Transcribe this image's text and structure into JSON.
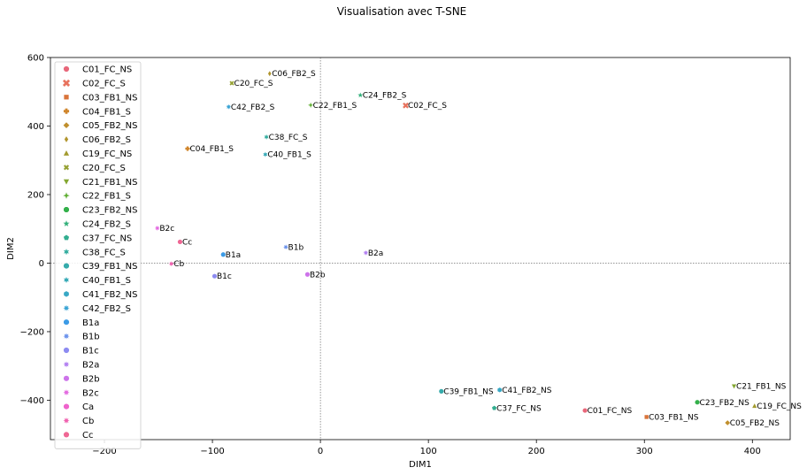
{
  "chart_data": {
    "type": "scatter",
    "title": "Visualisation avec T-SNE",
    "xlabel": "DIM1",
    "ylabel": "DIM2",
    "xlim": [
      -250,
      435
    ],
    "ylim": [
      -515,
      600
    ],
    "xticks": [
      -200,
      -100,
      0,
      100,
      200,
      300,
      400
    ],
    "yticks": [
      -400,
      -200,
      0,
      200,
      400,
      600
    ],
    "reference_lines": {
      "x": 0,
      "y": 0,
      "style": "dotted"
    },
    "grid": false,
    "legend_position": "top-left",
    "series": [
      {
        "name": "C01_FC_NS",
        "label": "C01_FC_NS",
        "x": 245,
        "y": -430,
        "marker": "circle",
        "color": "#e8677a"
      },
      {
        "name": "C02_FC_S",
        "label": "C02_FC_S",
        "x": 79,
        "y": 460,
        "marker": "x",
        "color": "#e8735e"
      },
      {
        "name": "C03_FB1_NS",
        "label": "C03_FB1_NS",
        "x": 302,
        "y": -449,
        "marker": "square",
        "color": "#d9743a"
      },
      {
        "name": "C04_FB1_S",
        "label": "C04_FB1_S",
        "x": -123,
        "y": 334,
        "marker": "plus",
        "color": "#d0862d"
      },
      {
        "name": "C05_FB2_NS",
        "label": "C05_FB2_NS",
        "x": 377,
        "y": -466,
        "marker": "diamond",
        "color": "#c08f2d"
      },
      {
        "name": "C06_FB2_S",
        "label": "C06_FB2_S",
        "x": -47,
        "y": 553,
        "marker": "thin-diamond",
        "color": "#b1952d"
      },
      {
        "name": "C19_FC_NS",
        "label": "C19_FC_NS",
        "x": 402,
        "y": -417,
        "marker": "triangle-up",
        "color": "#a39b2f"
      },
      {
        "name": "C20_FC_S",
        "label": "C20_FC_S",
        "x": -82,
        "y": 525,
        "marker": "x-small",
        "color": "#95a032"
      },
      {
        "name": "C21_FB1_NS",
        "label": "C21_FB1_NS",
        "x": 383,
        "y": -359,
        "marker": "triangle-down",
        "color": "#84a731"
      },
      {
        "name": "C22_FB1_S",
        "label": "C22_FB1_S",
        "x": -9,
        "y": 461,
        "marker": "star4",
        "color": "#5fae32"
      },
      {
        "name": "C23_FB2_NS",
        "label": "C23_FB2_NS",
        "x": 349,
        "y": -406,
        "marker": "octagon",
        "color": "#33b04a"
      },
      {
        "name": "C24_FB2_S",
        "label": "C24_FB2_S",
        "x": 37,
        "y": 490,
        "marker": "star",
        "color": "#32b07a"
      },
      {
        "name": "C37_FC_NS",
        "label": "C37_FC_NS",
        "x": 161,
        "y": -423,
        "marker": "pentagon",
        "color": "#33ae90"
      },
      {
        "name": "C38_FC_S",
        "label": "C38_FC_S",
        "x": -50,
        "y": 368,
        "marker": "star6",
        "color": "#34ad9f"
      },
      {
        "name": "C39_FB1_NS",
        "label": "C39_FB1_NS",
        "x": 112,
        "y": -374,
        "marker": "circle",
        "color": "#36abab"
      },
      {
        "name": "C40_FB1_S",
        "label": "C40_FB1_S",
        "x": -51,
        "y": 317,
        "marker": "star6",
        "color": "#37aab7"
      },
      {
        "name": "C41_FB2_NS",
        "label": "C41_FB2_NS",
        "x": 166,
        "y": -370,
        "marker": "hexagon",
        "color": "#38a8c5"
      },
      {
        "name": "C42_FB2_S",
        "label": "C42_FB2_S",
        "x": -85,
        "y": 456,
        "marker": "star8",
        "color": "#3aa4d4"
      },
      {
        "name": "B1a",
        "label": "B1a",
        "x": -90,
        "y": 25,
        "marker": "circle",
        "color": "#3c9be6"
      },
      {
        "name": "B1b",
        "label": "B1b",
        "x": -32,
        "y": 47,
        "marker": "star8",
        "color": "#6a92ec"
      },
      {
        "name": "B1c",
        "label": "B1c",
        "x": -98,
        "y": -38,
        "marker": "circle",
        "color": "#8d8bf1"
      },
      {
        "name": "B2a",
        "label": "B2a",
        "x": 42,
        "y": 30,
        "marker": "star8",
        "color": "#b27ff1"
      },
      {
        "name": "B2b",
        "label": "B2b",
        "x": -12,
        "y": -33,
        "marker": "circle",
        "color": "#cd73ea"
      },
      {
        "name": "B2c",
        "label": "B2c",
        "x": -151,
        "y": 102,
        "marker": "star8",
        "color": "#e36ae0"
      },
      {
        "name": "Ca",
        "label": "",
        "x": null,
        "y": null,
        "marker": "circle",
        "color": "#ef63cc"
      },
      {
        "name": "Cb",
        "label": "Cb",
        "x": -138,
        "y": -2,
        "marker": "star8",
        "color": "#f062b0"
      },
      {
        "name": "Cc",
        "label": "Cc",
        "x": -130,
        "y": 62,
        "marker": "circle",
        "color": "#ef6794"
      }
    ]
  }
}
